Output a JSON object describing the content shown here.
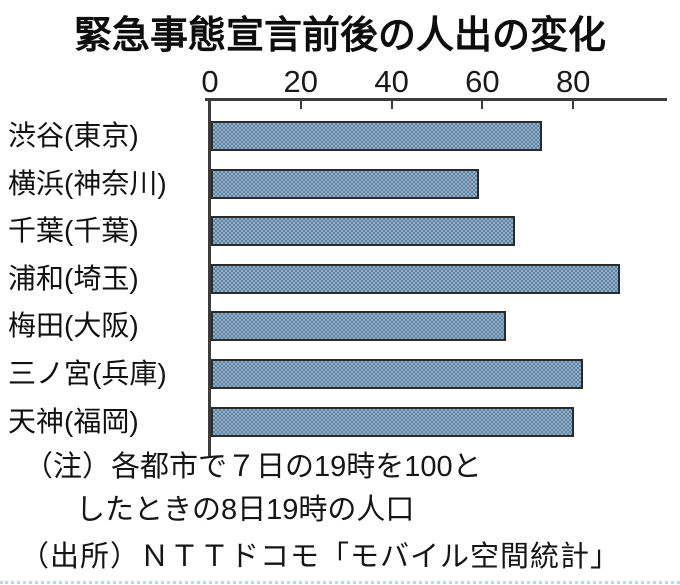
{
  "title": "緊急事態宣言前後の人出の変化",
  "chart_data": {
    "type": "bar",
    "orientation": "horizontal",
    "title": "緊急事態宣言前後の人出の変化",
    "categories": [
      "渋谷(東京)",
      "横浜(神奈川)",
      "千葉(千葉)",
      "浦和(埼玉)",
      "梅田(大阪)",
      "三ノ宮(兵庫)",
      "天神(福岡)"
    ],
    "values": [
      73,
      59,
      67,
      90,
      65,
      82,
      80
    ],
    "x_ticks": [
      0,
      20,
      40,
      60,
      80
    ],
    "xlim": [
      0,
      100
    ],
    "grid": "off",
    "legend": "none",
    "bar_base_color": "#7b9cb8",
    "bar_pattern_light": "#93afc7",
    "bar_pattern_dark": "#5f83a3",
    "bar_border_color": "#2b2b2b",
    "axis_color": "#3c3c3c"
  },
  "notes": {
    "line1": "（注）各都市で７日の19時を100と",
    "line2": "したときの8日19時の人口",
    "source": "（出所）ＮＴＴドコモ「モバイル空間統計」"
  }
}
